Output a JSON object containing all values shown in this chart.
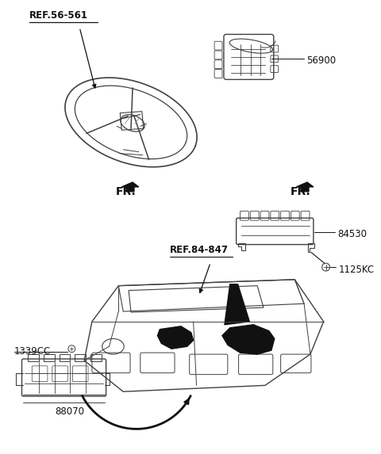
{
  "bg_color": "#ffffff",
  "labels": {
    "ref56": "REF.56-561",
    "part56900": "56900",
    "ref84": "REF.84-847",
    "part84530": "84530",
    "part1125KC": "1125KC",
    "part88070": "88070",
    "part1339CC": "1339CC",
    "fr_left": "FR.",
    "fr_right": "FR."
  },
  "lc": "#404040",
  "dark": "#111111",
  "lw_main": 1.0,
  "lw_detail": 0.6,
  "fs": 8.5
}
